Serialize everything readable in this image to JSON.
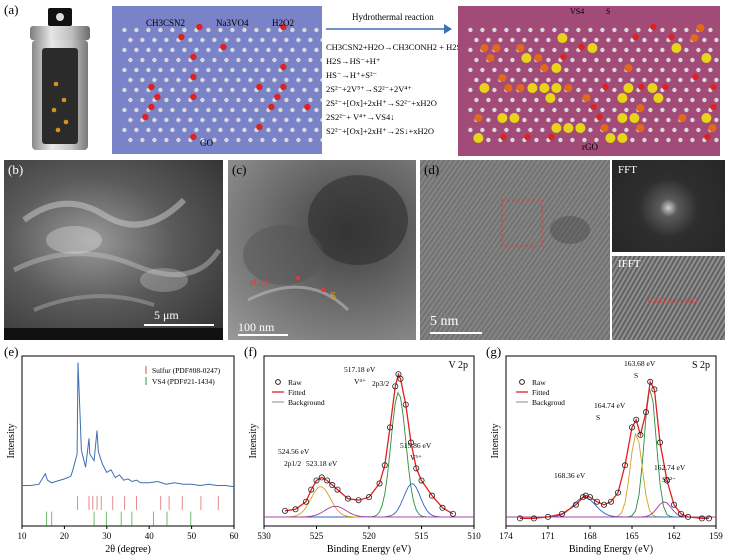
{
  "panel_a": {
    "label": "(a)",
    "reagents": [
      "CH3CSN2",
      "Na3VO4",
      "H2O2"
    ],
    "sheet_left_label": "GO",
    "arrow_label": "Hydrothermal reaction",
    "sheet_right_label": "rGO",
    "vs4_label": "VS4",
    "s_label": "S",
    "equations": [
      "CH3CSN2+H2O→CH3CONH2 + H2S",
      "H2S→HS⁻+H⁺",
      "HS⁻→H⁺+S²⁻",
      "2S²⁻+2V⁵⁺→S2²⁻+2V⁴⁺",
      "2S²⁻+[Ox]+2xH⁺→S2²⁻+xH2O",
      "2S2²⁻+ V⁴⁺→VS4↓",
      "S2²⁻+[Ox]+2xH⁺→2S↓+xH2O"
    ]
  },
  "panel_b": {
    "label": "(b)",
    "scale_bar": "5 μm"
  },
  "panel_c": {
    "label": "(c)",
    "scale_bar": "100 nm",
    "rgo_label": "rGO",
    "s_label": "S"
  },
  "panel_d": {
    "label": "(d)",
    "scale_bar": "5 nm",
    "fft_label": "FFT",
    "ifft_label": "IFFT",
    "ifft_annotation": "0.341 nm (002)"
  },
  "chart_data": [
    {
      "type": "line",
      "panel": "(e)",
      "xlabel": "2θ (degree)",
      "ylabel": "Intensity",
      "xlim": [
        10,
        60
      ],
      "xticks": [
        10,
        20,
        30,
        40,
        50,
        60
      ],
      "legend": [
        "Sulfur (PDF#08-0247)",
        "VS4 (PDF#21-1434)"
      ],
      "legend_colors": [
        "#e88a8a",
        "#6dbf6d"
      ],
      "xrd_x": [
        10,
        12,
        14,
        15.5,
        16,
        17,
        18,
        20,
        21.5,
        22,
        23,
        23.2,
        24,
        25,
        25.8,
        26,
        27,
        27.7,
        28,
        29,
        30,
        31,
        32,
        33,
        34,
        35,
        36,
        37,
        38,
        40,
        42,
        44,
        46,
        48,
        50,
        52,
        54,
        56,
        58,
        60
      ],
      "xrd_y": [
        0.06,
        0.06,
        0.07,
        0.15,
        0.1,
        0.08,
        0.09,
        0.11,
        0.13,
        0.18,
        0.3,
        1.0,
        0.33,
        0.2,
        0.42,
        0.3,
        0.25,
        0.48,
        0.32,
        0.22,
        0.16,
        0.18,
        0.12,
        0.14,
        0.1,
        0.11,
        0.09,
        0.1,
        0.08,
        0.08,
        0.09,
        0.07,
        0.08,
        0.07,
        0.07,
        0.06,
        0.07,
        0.06,
        0.06,
        0.05
      ],
      "sulfur_ref_x": [
        23.1,
        25.8,
        26.7,
        27.7,
        28.7,
        31.4,
        34.2,
        37.0,
        42.7,
        44.7,
        47.8,
        52.2,
        56.3
      ],
      "vs4_ref_x": [
        15.8,
        17.0,
        27.0,
        29.9,
        33.4,
        35.9,
        41.0,
        44.2,
        49.8
      ]
    },
    {
      "type": "line",
      "panel": "(f)",
      "title": "V 2p",
      "xlabel": "Binding Energy (eV)",
      "ylabel": "Intensity",
      "xlim": [
        530,
        510
      ],
      "xticks": [
        530,
        525,
        520,
        515,
        510
      ],
      "legend": [
        "Raw",
        "Fitted",
        "Background"
      ],
      "annotations": [
        "517.18 eV",
        "V⁴⁺",
        "2p3/2",
        "515.86 eV",
        "V⁵⁺",
        "524.56 eV",
        "2p1/2",
        "523.18 eV"
      ],
      "x": [
        528,
        527,
        526,
        525.5,
        525,
        524.5,
        524,
        523.5,
        523,
        522,
        521,
        520,
        519,
        518.5,
        518,
        517.5,
        517.2,
        517,
        516.5,
        516,
        515.5,
        515,
        514,
        513,
        512
      ],
      "y": [
        0.1,
        0.11,
        0.16,
        0.24,
        0.3,
        0.32,
        0.3,
        0.27,
        0.24,
        0.18,
        0.17,
        0.19,
        0.28,
        0.4,
        0.65,
        0.92,
        1.0,
        0.97,
        0.8,
        0.55,
        0.38,
        0.3,
        0.2,
        0.12,
        0.08
      ]
    },
    {
      "type": "line",
      "panel": "(g)",
      "title": "S 2p",
      "xlabel": "Binding Energy (eV)",
      "ylabel": "Intensity",
      "xlim": [
        174,
        159
      ],
      "xticks": [
        174,
        171,
        168,
        165,
        162,
        159
      ],
      "legend": [
        "Raw",
        "Fitted",
        "Backgroud"
      ],
      "annotations": [
        "163.68 eV",
        "S",
        "164.74 eV",
        "S",
        "168.36 eV",
        "162.74 eV",
        "S2²⁻"
      ],
      "x": [
        173,
        172,
        171,
        170,
        169,
        168.5,
        168.3,
        168,
        167.5,
        167,
        166.5,
        166,
        165.5,
        165,
        164.7,
        164.4,
        164,
        163.7,
        163.4,
        163,
        162.5,
        162,
        161.5,
        161,
        160,
        159.5
      ],
      "y": [
        0.05,
        0.05,
        0.06,
        0.08,
        0.14,
        0.19,
        0.2,
        0.19,
        0.16,
        0.14,
        0.16,
        0.22,
        0.4,
        0.65,
        0.7,
        0.6,
        0.75,
        0.95,
        0.9,
        0.55,
        0.3,
        0.14,
        0.08,
        0.06,
        0.05,
        0.05
      ]
    }
  ]
}
